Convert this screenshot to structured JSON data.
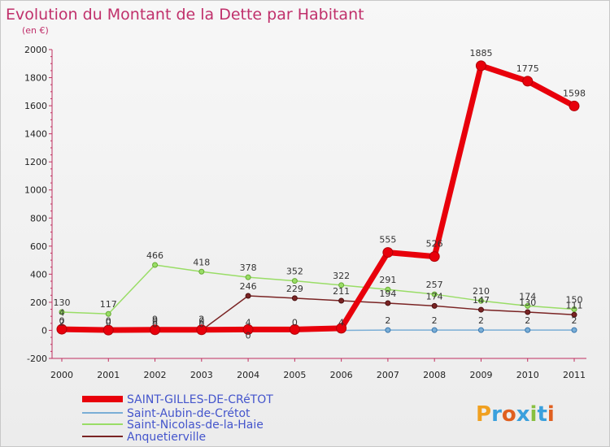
{
  "chart_data": {
    "type": "line",
    "title": "Evolution du Montant de la Dette par Habitant",
    "subtitle": "(en €)",
    "xlabel": "",
    "ylabel": "",
    "x": [
      "2000",
      "2001",
      "2002",
      "2003",
      "2004",
      "2005",
      "2006",
      "2007",
      "2008",
      "2009",
      "2010",
      "2011"
    ],
    "ylim": [
      -200,
      2000
    ],
    "yticks": [
      -200,
      0,
      200,
      400,
      600,
      800,
      1000,
      1200,
      1400,
      1600,
      1800,
      2000
    ],
    "grid": false,
    "legend_position": "bottom-left",
    "series": [
      {
        "name": "SAINT-GILLES-DE-CRéTOT",
        "color": "#e8000b",
        "values": [
          8,
          2,
          4,
          4,
          6,
          6,
          15,
          555,
          526,
          1885,
          1775,
          1598
        ],
        "labels": [
          "",
          "",
          "",
          "",
          "",
          "",
          "",
          "555",
          "526",
          "1885",
          "1775",
          "1598"
        ]
      },
      {
        "name": "Saint-Aubin-de-Crétot",
        "color": "#7aaed6",
        "values": [
          0,
          0,
          0,
          0,
          0,
          0,
          0,
          2,
          2,
          2,
          2,
          2
        ],
        "labels": [
          "",
          "",
          "",
          "",
          "",
          "",
          "",
          "2",
          "2",
          "2",
          "2",
          "2"
        ]
      },
      {
        "name": "Saint-Nicolas-de-la-Haie",
        "color": "#99dd66",
        "values": [
          130,
          117,
          466,
          418,
          378,
          352,
          322,
          291,
          257,
          210,
          174,
          150
        ],
        "labels": [
          "130",
          "117",
          "466",
          "418",
          "378",
          "352",
          "322",
          "291",
          "257",
          "210",
          "174",
          "150"
        ]
      },
      {
        "name": "Anquetierville",
        "color": "#7a2424",
        "values": [
          0,
          0,
          0,
          0,
          246,
          229,
          211,
          194,
          174,
          147,
          130,
          111
        ],
        "labels": [
          "0",
          "0",
          "0",
          "0",
          "246",
          "229",
          "211",
          "194",
          "174",
          "147",
          "130",
          "111"
        ]
      }
    ],
    "stacked_labels": [
      "4",
      "2",
      "0",
      "9",
      "0",
      "2",
      "0",
      "4",
      "0",
      "4",
      "0"
    ]
  },
  "logo": {
    "text": "Proxiti"
  }
}
